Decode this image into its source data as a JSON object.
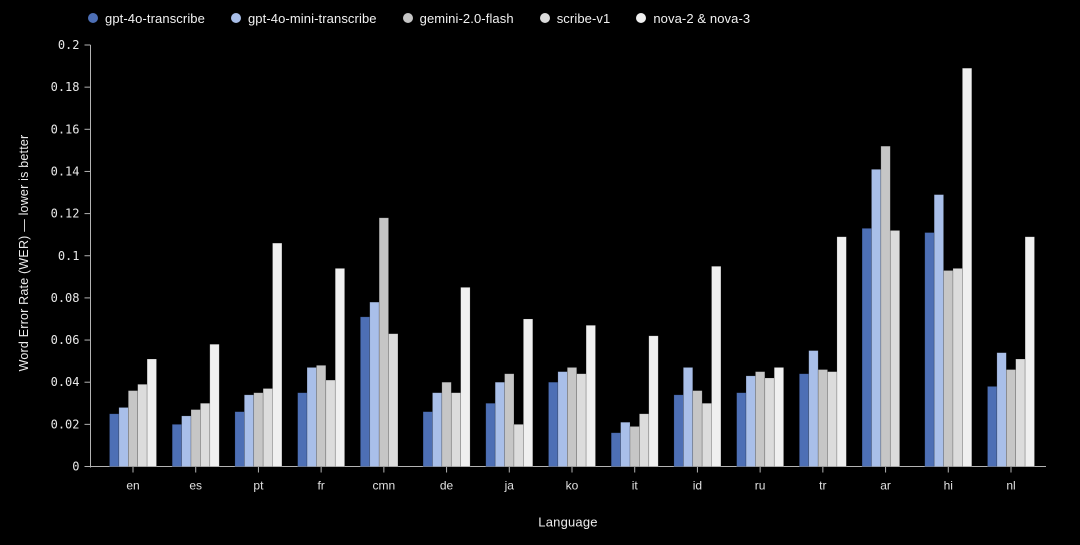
{
  "page": {
    "background": "#000000"
  },
  "style": {
    "axis_color": "#b3b3b3",
    "tick_text_color": "#e8e8e8",
    "bar_edge_color": "rgba(0,0,0,0.28)"
  },
  "chart_data": {
    "type": "bar",
    "title": "",
    "xlabel": "Language",
    "ylabel": "Word Error Rate (WER) — lower is better",
    "legend_position": "top",
    "grid": false,
    "ylim": [
      0,
      0.2
    ],
    "ytick_step": 0.02,
    "ytick_labels": [
      "0",
      "0.02",
      "0.04",
      "0.06",
      "0.08",
      "0.1",
      "0.12",
      "0.14",
      "0.16",
      "0.18",
      "0.2"
    ],
    "categories": [
      "en",
      "es",
      "pt",
      "fr",
      "cmn",
      "de",
      "ja",
      "ko",
      "it",
      "id",
      "ru",
      "tr",
      "ar",
      "hi",
      "nl"
    ],
    "series": [
      {
        "name": "gpt-4o-transcribe",
        "color": "#4d6fb5",
        "values": [
          0.025,
          0.02,
          0.026,
          0.035,
          0.071,
          0.026,
          0.03,
          0.04,
          0.016,
          0.034,
          0.035,
          0.044,
          0.113,
          0.111,
          0.038
        ]
      },
      {
        "name": "gpt-4o-mini-transcribe",
        "color": "#a9bfe9",
        "values": [
          0.028,
          0.024,
          0.034,
          0.047,
          0.078,
          0.035,
          0.04,
          0.045,
          0.021,
          0.047,
          0.043,
          0.055,
          0.141,
          0.129,
          0.054
        ]
      },
      {
        "name": "gemini-2.0-flash",
        "color": "#c6c6c6",
        "values": [
          0.036,
          0.027,
          0.035,
          0.048,
          0.118,
          0.04,
          0.044,
          0.047,
          0.019,
          0.036,
          0.045,
          0.046,
          0.152,
          0.093,
          0.046
        ]
      },
      {
        "name": "scribe-v1",
        "color": "#dcdcdc",
        "values": [
          0.039,
          0.03,
          0.037,
          0.041,
          0.063,
          0.035,
          0.02,
          0.044,
          0.025,
          0.03,
          0.042,
          0.045,
          0.112,
          0.094,
          0.051
        ]
      },
      {
        "name": "nova-2 & nova-3",
        "color": "#f0f0f0",
        "values": [
          0.051,
          0.058,
          0.106,
          0.094,
          null,
          0.085,
          0.07,
          0.067,
          0.062,
          0.095,
          0.047,
          0.109,
          null,
          0.189,
          0.109
        ]
      }
    ]
  }
}
